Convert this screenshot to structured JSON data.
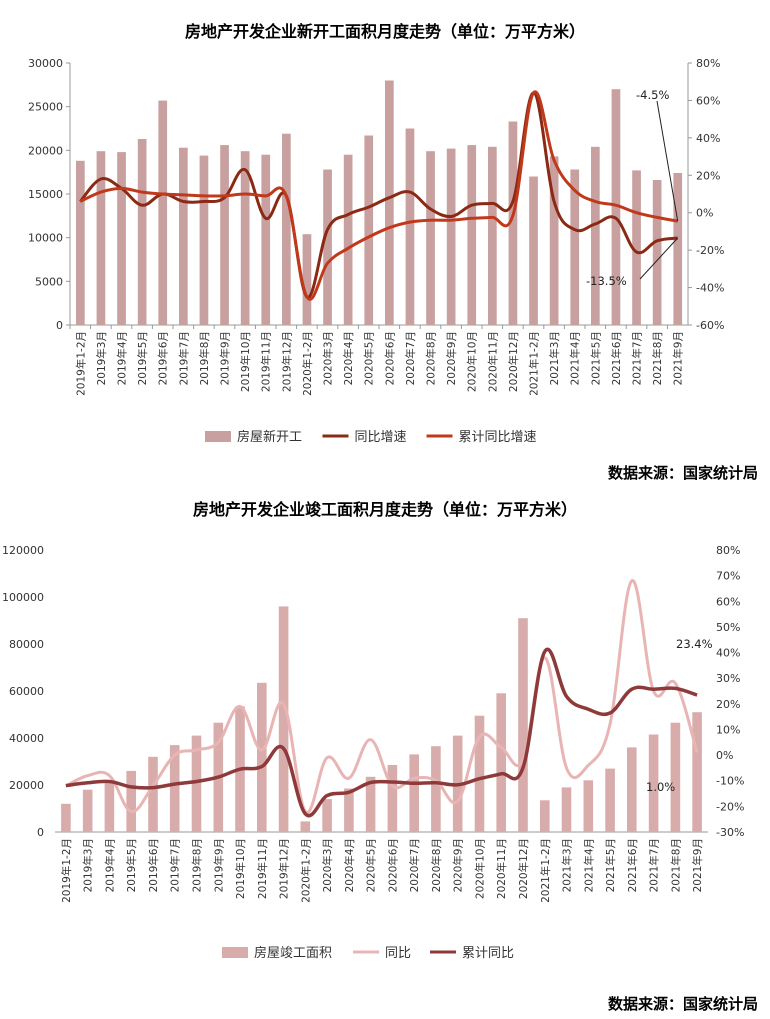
{
  "source_label": "数据来源：国家统计局",
  "chart_data": [
    {
      "type": "bar",
      "title": "房地产开发企业新开工面积月度走势（单位：万平方米）",
      "source": "数据来源：国家统计局",
      "categories": [
        "2019年1-2月",
        "2019年3月",
        "2019年4月",
        "2019年5月",
        "2019年6月",
        "2019年7月",
        "2019年8月",
        "2019年9月",
        "2019年10月",
        "2019年11月",
        "2019年12月",
        "2020年1-2月",
        "2020年3月",
        "2020年4月",
        "2020年5月",
        "2020年6月",
        "2020年7月",
        "2020年8月",
        "2020年9月",
        "2020年10月",
        "2020年11月",
        "2020年12月",
        "2021年1-2月",
        "2021年3月",
        "2021年4月",
        "2021年5月",
        "2021年6月",
        "2021年7月",
        "2021年8月",
        "2021年9月"
      ],
      "y_left": {
        "range": [
          0,
          30000
        ],
        "ticks": [
          "0",
          "5000",
          "10000",
          "15000",
          "20000",
          "25000",
          "30000"
        ]
      },
      "y_right": {
        "range": [
          -60,
          80
        ],
        "ticks": [
          "-60%",
          "-40%",
          "-20%",
          "0%",
          "20%",
          "40%",
          "60%",
          "80%"
        ]
      },
      "series": [
        {
          "name": "房屋新开工",
          "kind": "bar",
          "axis": "left",
          "color": "#c9a0a0",
          "values": [
            18800,
            19900,
            19800,
            21300,
            25700,
            20300,
            19400,
            20600,
            19900,
            19500,
            21900,
            10400,
            17800,
            19500,
            21700,
            28000,
            22500,
            19900,
            20200,
            20600,
            20400,
            23300,
            17000,
            19300,
            17800,
            20400,
            27000,
            17700,
            16600,
            17400
          ]
        },
        {
          "name": "同比增速",
          "kind": "line",
          "axis": "right",
          "color": "#8b2a14",
          "values": [
            6.0,
            18.0,
            13.0,
            4.0,
            10.0,
            6.0,
            6.0,
            8.0,
            23.0,
            -3.0,
            9.0,
            -45.0,
            -9.0,
            -1.0,
            3.0,
            8.0,
            11.0,
            2.0,
            -2.0,
            4.0,
            5.0,
            6.0,
            64.0,
            6.0,
            -9.0,
            -6.0,
            -3.0,
            -21.0,
            -15.0,
            -13.5
          ]
        },
        {
          "name": "累计同比增速",
          "kind": "line",
          "axis": "right",
          "color": "#c0391b",
          "values": [
            6.0,
            11.0,
            13.0,
            11.0,
            10.0,
            9.5,
            9.0,
            9.0,
            10.0,
            9.0,
            9.0,
            -45.0,
            -27.0,
            -19.0,
            -13.0,
            -8.0,
            -5.0,
            -4.0,
            -4.0,
            -3.0,
            -2.5,
            -1.5,
            64.0,
            28.0,
            12.0,
            6.0,
            4.0,
            0.0,
            -2.5,
            -4.5
          ]
        }
      ],
      "annotations": [
        "-4.5%",
        "-13.5%"
      ],
      "legend": "bottom"
    },
    {
      "type": "bar",
      "title": "房地产开发企业竣工面积月度走势（单位：万平方米）",
      "source": "数据来源：国家统计局",
      "categories": [
        "2019年1-2月",
        "2019年3月",
        "2019年4月",
        "2019年5月",
        "2019年6月",
        "2019年7月",
        "2019年8月",
        "2019年9月",
        "2019年10月",
        "2019年11月",
        "2019年12月",
        "2020年1-2月",
        "2020年3月",
        "2020年4月",
        "2020年5月",
        "2020年6月",
        "2020年7月",
        "2020年8月",
        "2020年9月",
        "2020年10月",
        "2020年11月",
        "2020年12月",
        "2021年1-2月",
        "2021年3月",
        "2021年4月",
        "2021年5月",
        "2021年6月",
        "2021年7月",
        "2021年8月",
        "2021年9月"
      ],
      "y_left": {
        "range": [
          0,
          120000
        ],
        "ticks": [
          "0",
          "20000",
          "40000",
          "60000",
          "80000",
          "100000",
          "120000"
        ]
      },
      "y_right": {
        "range": [
          -30,
          80
        ],
        "ticks": [
          "-30%",
          "-20%",
          "-10%",
          "0%",
          "10%",
          "20%",
          "30%",
          "40%",
          "50%",
          "60%",
          "70%",
          "80%"
        ]
      },
      "series": [
        {
          "name": "房屋竣工面积",
          "kind": "bar",
          "axis": "left",
          "color": "#d9acac",
          "values": [
            12000,
            18000,
            20800,
            26000,
            32000,
            37000,
            41000,
            46500,
            53500,
            63500,
            96000,
            4500,
            14000,
            18500,
            23500,
            28500,
            33000,
            36500,
            41000,
            49500,
            59000,
            91000,
            13500,
            19000,
            22000,
            27000,
            36000,
            41500,
            46500,
            51000
          ]
        },
        {
          "name": "同比",
          "kind": "line",
          "axis": "right",
          "color": "#e8b4b4",
          "values": [
            -12.0,
            -8.0,
            -8.0,
            -22.0,
            -12.0,
            0.0,
            2.0,
            5.0,
            19.0,
            2.0,
            20.0,
            -22.0,
            -1.0,
            -9.0,
            6.0,
            -12.0,
            -9.0,
            -10.0,
            -18.0,
            7.0,
            3.0,
            -2.0,
            38.0,
            -5.0,
            -4.0,
            12.0,
            68.0,
            25.0,
            28.0,
            1.0
          ]
        },
        {
          "name": "累计同比",
          "kind": "line",
          "axis": "right",
          "color": "#8e3a3a",
          "values": [
            -11.9,
            -10.8,
            -10.3,
            -12.4,
            -12.7,
            -11.3,
            -10.3,
            -8.6,
            -5.5,
            -4.5,
            2.6,
            -22.9,
            -15.8,
            -14.5,
            -10.7,
            -10.5,
            -11.0,
            -10.8,
            -11.6,
            -9.2,
            -7.3,
            -4.9,
            40.4,
            22.9,
            17.9,
            16.4,
            25.7,
            25.7,
            26.0,
            23.4
          ]
        }
      ],
      "annotations": [
        "23.4%",
        "1.0%"
      ],
      "legend": "bottom"
    }
  ]
}
